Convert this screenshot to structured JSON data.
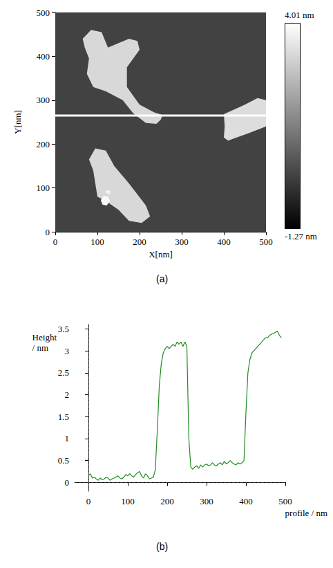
{
  "chart_data": [
    {
      "type": "image",
      "caption": "(a)",
      "x_label": "X[nm]",
      "y_label": "Y[nm]",
      "xlim": [
        0,
        500
      ],
      "ylim": [
        0,
        500
      ],
      "xticks": [
        0,
        100,
        200,
        300,
        400,
        500
      ],
      "yticks": [
        0,
        100,
        200,
        300,
        400,
        500
      ],
      "colorbar": {
        "range": [
          -1.27,
          4.01
        ],
        "labels": [
          "-1.27 nm",
          "4.01 nm"
        ]
      },
      "background_height": 0.1,
      "features": [
        {
          "height": 3.2,
          "points": [
            [
              65,
              440
            ],
            [
              85,
              460
            ],
            [
              110,
              455
            ],
            [
              125,
              420
            ],
            [
              175,
              440
            ],
            [
              195,
              435
            ],
            [
              200,
              415
            ],
            [
              170,
              375
            ],
            [
              170,
              330
            ],
            [
              200,
              290
            ],
            [
              235,
              272
            ],
            [
              255,
              266
            ],
            [
              250,
              255
            ],
            [
              240,
              246
            ],
            [
              215,
              248
            ],
            [
              185,
              270
            ],
            [
              160,
              300
            ],
            [
              120,
              320
            ],
            [
              90,
              330
            ],
            [
              75,
              360
            ],
            [
              80,
              395
            ],
            [
              70,
              420
            ]
          ]
        },
        {
          "height": 3.2,
          "points": [
            [
              80,
              165
            ],
            [
              95,
              190
            ],
            [
              120,
              185
            ],
            [
              140,
              150
            ],
            [
              175,
              110
            ],
            [
              215,
              60
            ],
            [
              225,
              35
            ],
            [
              205,
              20
            ],
            [
              175,
              25
            ],
            [
              150,
              50
            ],
            [
              120,
              70
            ],
            [
              100,
              80
            ],
            [
              95,
              110
            ],
            [
              90,
              140
            ]
          ]
        },
        {
          "height": 3.9,
          "points": [
            [
              108,
              72
            ],
            [
              115,
              82
            ],
            [
              125,
              80
            ],
            [
              130,
              70
            ],
            [
              122,
              60
            ],
            [
              112,
              62
            ]
          ]
        },
        {
          "height": 3.7,
          "points": [
            [
              118,
              90
            ],
            [
              124,
              96
            ],
            [
              132,
              92
            ],
            [
              128,
              84
            ]
          ]
        },
        {
          "height": 3.3,
          "points": [
            [
              400,
              215
            ],
            [
              410,
              208
            ],
            [
              460,
              225
            ],
            [
              500,
              240
            ],
            [
              500,
              300
            ],
            [
              480,
              305
            ],
            [
              450,
              290
            ],
            [
              400,
              268
            ],
            [
              402,
              240
            ]
          ]
        }
      ],
      "profile_line_y": 265
    },
    {
      "type": "line",
      "caption": "(b)",
      "x_label": "profile / nm",
      "y_label": "Height / nm",
      "xlim": [
        -35,
        500
      ],
      "ylim": [
        -0.2,
        3.6
      ],
      "xticks": [
        0,
        100,
        200,
        300,
        400,
        500
      ],
      "yticks": [
        0,
        0.5,
        1,
        1.5,
        2,
        2.5,
        3,
        3.5
      ],
      "x": [
        0,
        5,
        10,
        15,
        20,
        25,
        30,
        35,
        40,
        45,
        50,
        55,
        60,
        65,
        70,
        75,
        80,
        85,
        90,
        95,
        100,
        105,
        110,
        115,
        120,
        125,
        130,
        135,
        140,
        145,
        150,
        155,
        160,
        165,
        170,
        175,
        180,
        185,
        190,
        195,
        200,
        205,
        210,
        215,
        220,
        225,
        230,
        235,
        240,
        245,
        250,
        255,
        260,
        265,
        270,
        275,
        280,
        285,
        290,
        295,
        300,
        305,
        310,
        315,
        320,
        325,
        330,
        335,
        340,
        345,
        350,
        355,
        360,
        365,
        370,
        375,
        380,
        385,
        390,
        395,
        400,
        405,
        410,
        415,
        420,
        425,
        430,
        435,
        440,
        445,
        450,
        455,
        460,
        465,
        470,
        475,
        480,
        485,
        490
      ],
      "values": [
        0.15,
        0.2,
        0.1,
        0.12,
        0.08,
        0.05,
        0.1,
        0.06,
        0.08,
        0.12,
        0.1,
        0.05,
        0.08,
        0.1,
        0.12,
        0.15,
        0.1,
        0.08,
        0.12,
        0.18,
        0.15,
        0.2,
        0.15,
        0.12,
        0.18,
        0.22,
        0.25,
        0.15,
        0.1,
        0.2,
        0.15,
        0.08,
        0.1,
        0.12,
        0.3,
        1.2,
        2.2,
        2.7,
        2.95,
        3.05,
        3.1,
        3.05,
        3.1,
        3.15,
        3.1,
        3.2,
        3.15,
        3.2,
        3.1,
        3.2,
        3.1,
        1.0,
        0.35,
        0.3,
        0.35,
        0.38,
        0.32,
        0.4,
        0.35,
        0.4,
        0.42,
        0.38,
        0.4,
        0.45,
        0.4,
        0.38,
        0.42,
        0.45,
        0.4,
        0.48,
        0.42,
        0.45,
        0.5,
        0.45,
        0.42,
        0.4,
        0.45,
        0.42,
        0.45,
        0.5,
        1.6,
        2.5,
        2.8,
        2.95,
        3.0,
        3.05,
        3.1,
        3.15,
        3.2,
        3.25,
        3.3,
        3.3,
        3.35,
        3.38,
        3.4,
        3.42,
        3.45,
        3.35,
        3.3
      ],
      "color": "#228b22",
      "reference_lines": [
        {
          "axis": "x",
          "value": 0
        },
        {
          "axis": "y",
          "value": 0
        }
      ]
    }
  ]
}
